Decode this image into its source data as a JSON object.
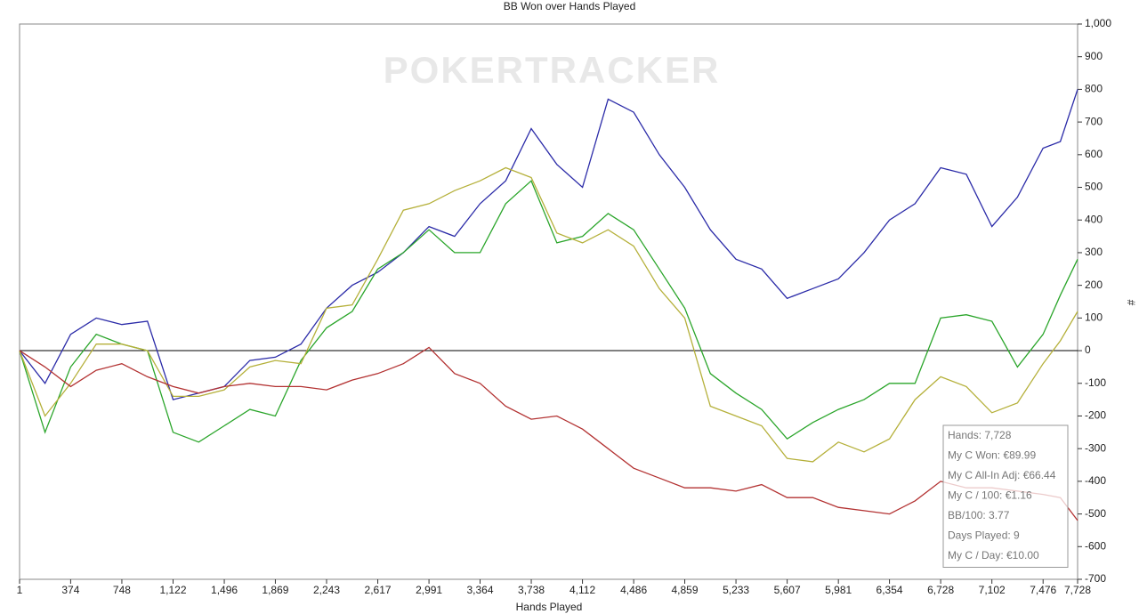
{
  "chart_data": {
    "type": "line",
    "title": "BB Won over Hands Played",
    "watermark": "POKERTRACKER",
    "x_label": "Hands Played",
    "y_label": "#",
    "x": [
      1,
      187,
      374,
      561,
      748,
      935,
      1122,
      1309,
      1496,
      1683,
      1869,
      2056,
      2243,
      2430,
      2617,
      2804,
      2991,
      3178,
      3364,
      3551,
      3738,
      3925,
      4112,
      4299,
      4486,
      4673,
      4859,
      5046,
      5233,
      5420,
      5607,
      5794,
      5981,
      6168,
      6354,
      6541,
      6728,
      6915,
      7102,
      7289,
      7476,
      7602,
      7728
    ],
    "series": [
      {
        "color": "#2b2ba8",
        "values": [
          0,
          -100,
          50,
          100,
          80,
          90,
          -150,
          -130,
          -110,
          -30,
          -20,
          20,
          130,
          200,
          240,
          300,
          380,
          350,
          450,
          520,
          680,
          570,
          500,
          770,
          730,
          600,
          500,
          370,
          280,
          250,
          160,
          190,
          220,
          300,
          400,
          450,
          560,
          540,
          380,
          470,
          620,
          640,
          800
        ]
      },
      {
        "color": "#2aa52a",
        "values": [
          0,
          -250,
          -50,
          50,
          20,
          0,
          -250,
          -280,
          -230,
          -180,
          -200,
          -30,
          70,
          120,
          250,
          300,
          370,
          300,
          300,
          450,
          520,
          330,
          350,
          420,
          370,
          250,
          130,
          -70,
          -130,
          -180,
          -270,
          -220,
          -180,
          -150,
          -100,
          -100,
          100,
          110,
          90,
          -50,
          50,
          170,
          280
        ]
      },
      {
        "color": "#b5b03a",
        "values": [
          0,
          -200,
          -100,
          20,
          20,
          0,
          -140,
          -140,
          -120,
          -50,
          -30,
          -40,
          130,
          140,
          280,
          430,
          450,
          490,
          520,
          560,
          530,
          360,
          330,
          370,
          320,
          190,
          100,
          -170,
          -200,
          -230,
          -330,
          -340,
          -280,
          -310,
          -270,
          -150,
          -80,
          -110,
          -190,
          -160,
          -40,
          30,
          120
        ]
      },
      {
        "color": "#b33232",
        "values": [
          0,
          -50,
          -110,
          -60,
          -40,
          -80,
          -110,
          -130,
          -110,
          -100,
          -110,
          -110,
          -120,
          -90,
          -70,
          -40,
          10,
          -70,
          -100,
          -170,
          -210,
          -200,
          -240,
          -300,
          -360,
          -390,
          -420,
          -420,
          -430,
          -410,
          -450,
          -450,
          -480,
          -490,
          -500,
          -460,
          -400,
          -420,
          -420,
          -430,
          -440,
          -450,
          -520
        ]
      }
    ],
    "xlim": [
      1,
      7728
    ],
    "xticks": [
      1,
      374,
      748,
      {
        "value": 1122,
        "label": "1,122"
      },
      {
        "value": 1496,
        "label": "1,496"
      },
      {
        "value": 1869,
        "label": "1,869"
      },
      {
        "value": 2243,
        "label": "2,243"
      },
      {
        "value": 2617,
        "label": "2,617"
      },
      {
        "value": 2991,
        "label": "2,991"
      },
      {
        "value": 3364,
        "label": "3,364"
      },
      {
        "value": 3738,
        "label": "3,738"
      },
      {
        "value": 4112,
        "label": "4,112"
      },
      {
        "value": 4486,
        "label": "4,486"
      },
      {
        "value": 4859,
        "label": "4,859"
      },
      {
        "value": 5233,
        "label": "5,233"
      },
      {
        "value": 5607,
        "label": "5,607"
      },
      {
        "value": 5981,
        "label": "5,981"
      },
      {
        "value": 6354,
        "label": "6,354"
      },
      {
        "value": 6728,
        "label": "6,728"
      },
      {
        "value": 7102,
        "label": "7,102"
      },
      {
        "value": 7476,
        "label": "7,476"
      },
      {
        "value": 7728,
        "label": "7,728"
      }
    ],
    "ylim": [
      -700,
      1000
    ],
    "yticks": [
      -700,
      -600,
      -500,
      -400,
      -300,
      -200,
      -100,
      0,
      100,
      200,
      300,
      400,
      500,
      600,
      700,
      800,
      900,
      {
        "value": 1000,
        "label": "1,000"
      }
    ],
    "grid": false,
    "stats": [
      "Hands: 7,728",
      "My C Won: €89.99",
      "My C All-In Adj: €66.44",
      "My C / 100: €1.16",
      "BB/100: 3.77",
      "Days Played: 9",
      "My C / Day: €10.00"
    ]
  }
}
